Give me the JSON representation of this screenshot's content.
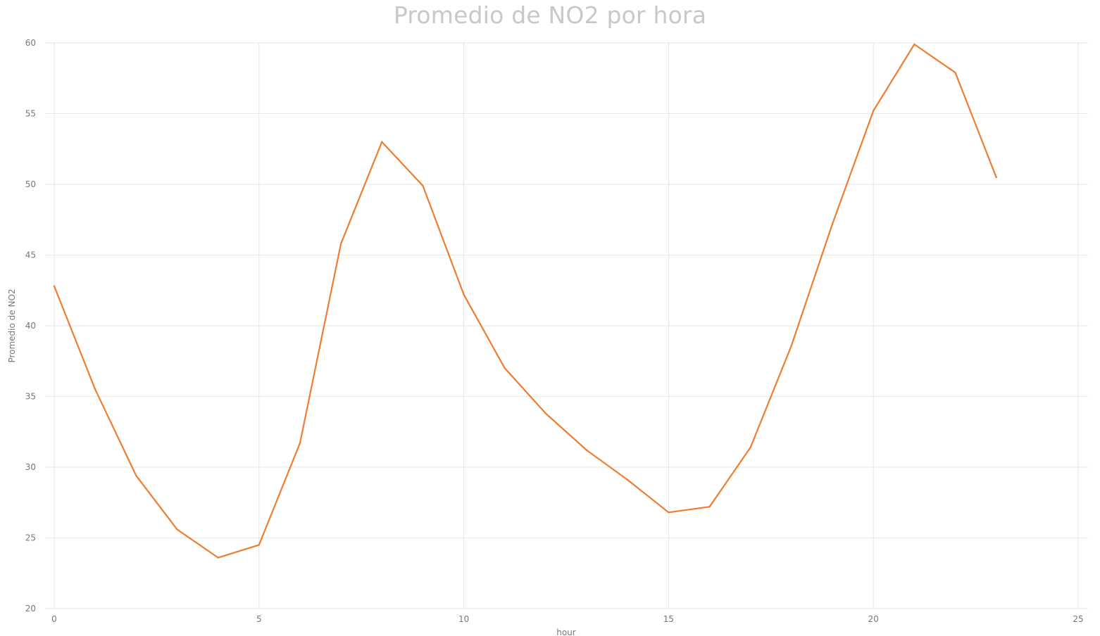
{
  "chart_data": {
    "type": "line",
    "title": "Promedio de NO2 por hora",
    "xlabel": "hour",
    "ylabel": "Promedio de NO2",
    "xlim": [
      0,
      25
    ],
    "ylim": [
      20,
      60
    ],
    "x_ticks": [
      0,
      5,
      10,
      15,
      20,
      25
    ],
    "y_ticks": [
      20,
      25,
      30,
      35,
      40,
      45,
      50,
      55,
      60
    ],
    "grid": true,
    "legend": "none",
    "x": [
      0,
      1,
      2,
      3,
      4,
      5,
      6,
      7,
      8,
      9,
      10,
      11,
      12,
      13,
      14,
      15,
      16,
      17,
      18,
      19,
      20,
      21,
      22,
      23
    ],
    "series": [
      {
        "color": "#ed7d31",
        "values": [
          42.8,
          35.5,
          29.4,
          25.6,
          23.6,
          24.5,
          31.7,
          45.8,
          53.0,
          49.9,
          42.2,
          37.0,
          33.8,
          31.2,
          29.1,
          26.8,
          27.2,
          31.4,
          38.6,
          47.2,
          55.2,
          59.9,
          57.9,
          50.5
        ]
      }
    ]
  }
}
